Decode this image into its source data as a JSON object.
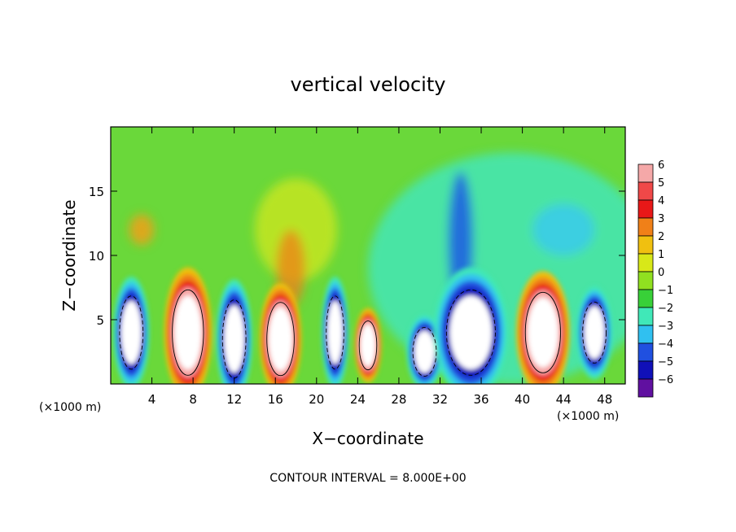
{
  "chart_data": {
    "type": "heatmap",
    "title": "vertical velocity",
    "xlabel": "X−coordinate",
    "ylabel": "Z−coordinate",
    "x_unit_label": "(×1000 m)",
    "z_unit_label": "(×1000 m)",
    "footer": "CONTOUR INTERVAL = 8.000E+00",
    "xlim": [
      0,
      50
    ],
    "ylim": [
      0,
      20
    ],
    "x_ticks": [
      4,
      8,
      12,
      16,
      20,
      24,
      28,
      32,
      36,
      40,
      44,
      48
    ],
    "y_ticks": [
      5,
      10,
      15
    ],
    "colorbar": {
      "levels": [
        6,
        5,
        4,
        3,
        2,
        1,
        0,
        -1,
        -2,
        -3,
        -4,
        -5,
        -6
      ],
      "labels": [
        "6",
        "5",
        "4",
        "3",
        "2",
        "1",
        "0",
        "−1",
        "−2",
        "−3",
        "−4",
        "−5",
        "−6"
      ],
      "colors": [
        "#f5a8a8",
        "#f04848",
        "#e81818",
        "#f08018",
        "#f0c010",
        "#d8e818",
        "#90e020",
        "#38d038",
        "#40e8b8",
        "#30c0f0",
        "#2050e0",
        "#1010b8",
        "#6010a0"
      ]
    },
    "features": [
      {
        "kind": "updraft",
        "cx": 7.5,
        "cz": 4.0,
        "rx": 1.6,
        "rz": 3.5
      },
      {
        "kind": "updraft",
        "cx": 16.5,
        "cz": 3.5,
        "rx": 1.4,
        "rz": 3.0
      },
      {
        "kind": "updraft",
        "cx": 25.0,
        "cz": 3.0,
        "rx": 0.9,
        "rz": 2.0
      },
      {
        "kind": "updraft",
        "cx": 42.0,
        "cz": 4.0,
        "rx": 1.8,
        "rz": 3.3
      },
      {
        "kind": "downdraft",
        "cx": 2.0,
        "cz": 4.0,
        "rx": 1.2,
        "rz": 3.0
      },
      {
        "kind": "downdraft",
        "cx": 12.0,
        "cz": 3.5,
        "rx": 1.2,
        "rz": 3.2
      },
      {
        "kind": "downdraft",
        "cx": 21.8,
        "cz": 4.0,
        "rx": 0.9,
        "rz": 3.0
      },
      {
        "kind": "downdraft",
        "cx": 30.5,
        "cz": 2.5,
        "rx": 1.2,
        "rz": 2.0
      },
      {
        "kind": "downdraft",
        "cx": 35.0,
        "cz": 4.0,
        "rx": 2.5,
        "rz": 3.5
      },
      {
        "kind": "downdraft",
        "cx": 47.0,
        "cz": 4.0,
        "rx": 1.2,
        "rz": 2.5
      }
    ]
  }
}
